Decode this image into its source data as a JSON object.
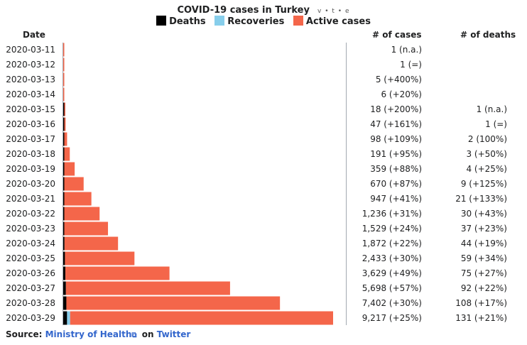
{
  "header": {
    "title": "COVID-19 cases in Turkey",
    "vte": "v • t • e",
    "col_date": "Date",
    "col_cases": "# of cases",
    "col_deaths": "# of deaths"
  },
  "legend": [
    {
      "label": "Deaths",
      "color": "#000000"
    },
    {
      "label": "Recoveries",
      "color": "#87ceeb"
    },
    {
      "label": "Active cases",
      "color": "#f4664a"
    }
  ],
  "colors": {
    "deaths": "#000000",
    "recoveries": "#87ceeb",
    "active": "#f4664a",
    "axis": "#a2a9b1"
  },
  "source": {
    "prefix": "Source:",
    "link_text": "Ministry of Health",
    "connector": "on",
    "platform": "Twitter"
  },
  "chart_data": {
    "type": "bar",
    "orientation": "horizontal",
    "stacked": true,
    "title": "COVID-19 cases in Turkey",
    "categories": [
      "2020-03-11",
      "2020-03-12",
      "2020-03-13",
      "2020-03-14",
      "2020-03-15",
      "2020-03-16",
      "2020-03-17",
      "2020-03-18",
      "2020-03-19",
      "2020-03-20",
      "2020-03-21",
      "2020-03-22",
      "2020-03-23",
      "2020-03-24",
      "2020-03-25",
      "2020-03-26",
      "2020-03-27",
      "2020-03-28",
      "2020-03-29"
    ],
    "series": [
      {
        "name": "Deaths",
        "values": [
          0,
          0,
          0,
          0,
          1,
          1,
          2,
          3,
          4,
          9,
          21,
          30,
          37,
          44,
          59,
          75,
          92,
          108,
          131
        ]
      },
      {
        "name": "Recoveries",
        "values": [
          0,
          0,
          0,
          0,
          0,
          0,
          0,
          0,
          0,
          0,
          0,
          0,
          0,
          0,
          0,
          0,
          0,
          0,
          105
        ]
      },
      {
        "name": "Active cases",
        "values": [
          1,
          1,
          5,
          6,
          17,
          46,
          96,
          188,
          355,
          661,
          926,
          1206,
          1492,
          1828,
          2374,
          3554,
          5606,
          7294,
          8981
        ]
      }
    ],
    "cases": [
      1,
      1,
      5,
      6,
      18,
      47,
      98,
      191,
      359,
      670,
      947,
      1236,
      1529,
      1872,
      2433,
      3629,
      5698,
      7402,
      9217
    ],
    "cases_labels": [
      "1 (n.a.)",
      "1 (=)",
      "5 (+400%)",
      "6 (+20%)",
      "18 (+200%)",
      "47 (+161%)",
      "98 (+109%)",
      "191 (+95%)",
      "359 (+88%)",
      "670 (+87%)",
      "947 (+41%)",
      "1,236 (+31%)",
      "1,529 (+24%)",
      "1,872 (+22%)",
      "2,433 (+30%)",
      "3,629 (+49%)",
      "5,698 (+57%)",
      "7,402 (+30%)",
      "9,217 (+25%)"
    ],
    "deaths_labels": [
      "",
      "",
      "",
      "",
      "1 (n.a.)",
      "1 (=)",
      "2 (100%)",
      "3 (+50%)",
      "4 (+25%)",
      "9 (+125%)",
      "21 (+133%)",
      "30 (+43%)",
      "37 (+23%)",
      "44 (+19%)",
      "59 (+34%)",
      "75 (+27%)",
      "92 (+22%)",
      "108 (+17%)",
      "131 (+21%)"
    ],
    "xlim": [
      0,
      9217
    ]
  }
}
